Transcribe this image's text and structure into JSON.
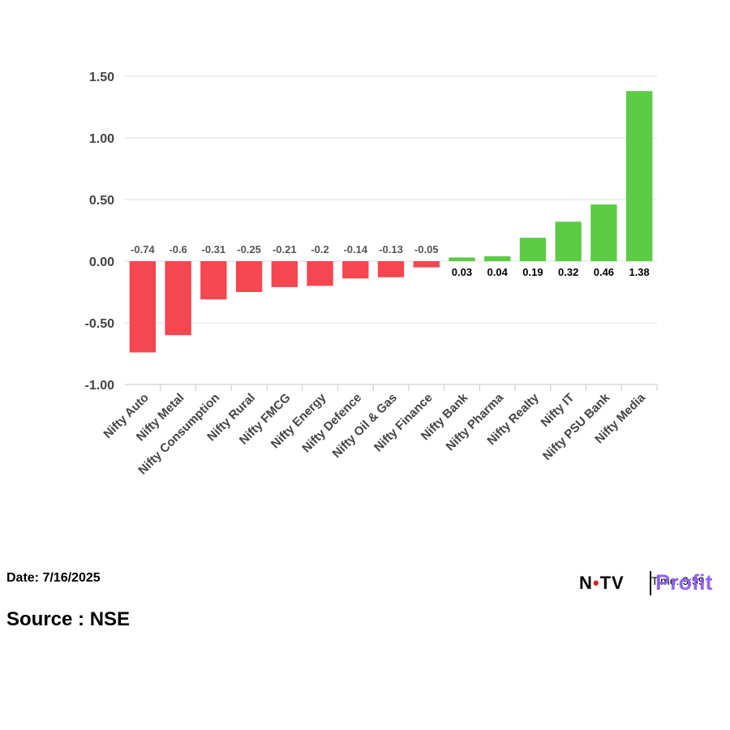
{
  "chart_data": {
    "type": "bar",
    "categories": [
      "Nifty Auto",
      "Nifty Metal",
      "Nifty Consumption",
      "Nifty Rural",
      "Nifty FMCG",
      "Nifty Energy",
      "Nifty Defence",
      "Nifty Oil & Gas",
      "Nifty Finance",
      "Nifty Bank",
      "Nifty Pharma",
      "Nifty Realty",
      "Nifty IT",
      "Nifty PSU Bank",
      "Nifty Media"
    ],
    "values": [
      -0.74,
      -0.6,
      -0.31,
      -0.25,
      -0.21,
      -0.2,
      -0.14,
      -0.13,
      -0.05,
      0.03,
      0.04,
      0.19,
      0.32,
      0.46,
      1.38
    ],
    "data_labels": [
      "-0.74",
      "-0.6",
      "-0.31",
      "-0.25",
      "-0.21",
      "-0.2",
      "-0.14",
      "-0.13",
      "-0.05",
      "0.03",
      "0.04",
      "0.19",
      "0.32",
      "0.46",
      "1.38"
    ],
    "ylim": [
      -1.0,
      1.5
    ],
    "yticks": [
      1.5,
      1.0,
      0.5,
      0.0,
      -0.5,
      -1.0
    ],
    "ytick_labels": [
      "1.50",
      "1.00",
      "0.50",
      "0.00",
      "-0.50",
      "-1.00"
    ],
    "grid": true,
    "colors": {
      "positive": "#5ccb45",
      "negative": "#f64650"
    }
  },
  "footer": {
    "date": "Date: 7/16/2025",
    "source": "Source : NSE"
  },
  "brand": {
    "ndtv_pre": "N",
    "ndtv_dot": "•",
    "ndtv_post": "TV",
    "time_text": "Time: 9:59",
    "profit": "Profit"
  }
}
